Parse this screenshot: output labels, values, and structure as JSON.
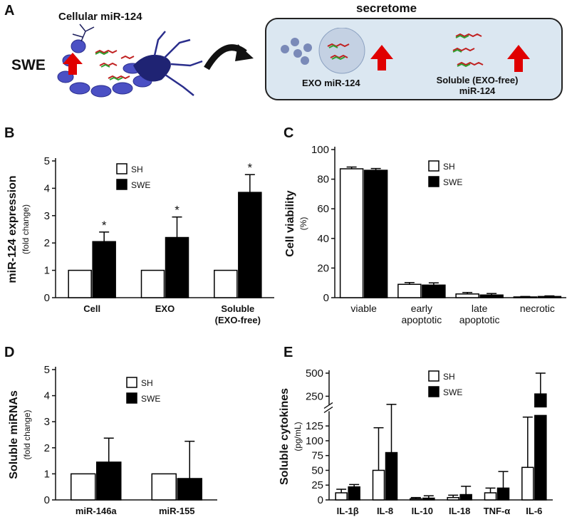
{
  "panel_labels": [
    "A",
    "B",
    "C",
    "D",
    "E"
  ],
  "panel_a": {
    "cell_title": "Cellular miR-124",
    "condition": "SWE",
    "secretome_title": "secretome",
    "exo_label": "EXO miR-124",
    "soluble_label_line1": "Soluble (EXO-free)",
    "soluble_label_line2": "miR-124",
    "colors": {
      "arrow": "#e00000",
      "neuron": "#3a3fb0",
      "box": "#dbe7f1"
    }
  },
  "legend": {
    "sh": "SH",
    "swe": "SWE"
  },
  "chart_data": [
    {
      "panel": "B",
      "type": "bar",
      "ylabel": "miR-124 expression",
      "ylabel_sub": "(fold change)",
      "ylim": [
        0,
        5
      ],
      "yticks": [
        0,
        1,
        2,
        3,
        4,
        5
      ],
      "categories": [
        {
          "line1": "Cell",
          "line2": ""
        },
        {
          "line1": "EXO",
          "line2": ""
        },
        {
          "line1": "Soluble",
          "line2": "(EXO-free)"
        }
      ],
      "series": [
        {
          "name": "SH",
          "values": [
            1,
            1,
            1
          ],
          "errors": [
            0,
            0,
            0
          ]
        },
        {
          "name": "SWE",
          "values": [
            2.05,
            2.2,
            3.85
          ],
          "errors": [
            0.35,
            0.75,
            0.65
          ]
        }
      ],
      "significance": [
        "*",
        "*",
        "*"
      ],
      "legend_position": "top-left"
    },
    {
      "panel": "C",
      "type": "bar",
      "ylabel": "Cell viability",
      "ylabel_sub": "(%)",
      "ylim": [
        0,
        100
      ],
      "yticks": [
        0,
        20,
        40,
        60,
        80,
        100
      ],
      "categories": [
        {
          "line1": "viable",
          "line2": ""
        },
        {
          "line1": "early",
          "line2": "apoptotic"
        },
        {
          "line1": "late",
          "line2": "apoptotic"
        },
        {
          "line1": "necrotic",
          "line2": ""
        }
      ],
      "series": [
        {
          "name": "SH",
          "values": [
            87,
            9,
            2.5,
            0.5
          ],
          "errors": [
            1.2,
            1.2,
            1,
            0.3
          ]
        },
        {
          "name": "SWE",
          "values": [
            86,
            8.5,
            1.8,
            0.8
          ],
          "errors": [
            1.2,
            1.5,
            1,
            0.4
          ]
        }
      ],
      "legend_position": "top-right"
    },
    {
      "panel": "D",
      "type": "bar",
      "ylabel": "Soluble miRNAs",
      "ylabel_sub": "(fold change)",
      "ylim": [
        0,
        5
      ],
      "yticks": [
        0,
        1,
        2,
        3,
        4,
        5
      ],
      "categories": [
        {
          "line1": "miR-146a",
          "line2": ""
        },
        {
          "line1": "miR-155",
          "line2": ""
        }
      ],
      "series": [
        {
          "name": "SH",
          "values": [
            1,
            1
          ],
          "errors": [
            0,
            0
          ]
        },
        {
          "name": "SWE",
          "values": [
            1.45,
            0.82
          ],
          "errors": [
            0.92,
            1.43
          ]
        }
      ],
      "legend_position": "top-right"
    },
    {
      "panel": "E",
      "type": "bar",
      "ylabel": "Soluble cytokines",
      "ylabel_sub": "(pg/mL)",
      "axis_break": true,
      "ylim_lower": [
        0,
        150
      ],
      "yticks_lower": [
        0,
        25,
        50,
        75,
        100,
        125
      ],
      "ylim_upper": [
        150,
        500
      ],
      "yticks_upper": [
        250,
        500
      ],
      "categories": [
        {
          "line1": "IL-1β",
          "line2": ""
        },
        {
          "line1": "IL-8",
          "line2": ""
        },
        {
          "line1": "IL-10",
          "line2": ""
        },
        {
          "line1": "IL-18",
          "line2": ""
        },
        {
          "line1": "TNF-α",
          "line2": ""
        },
        {
          "line1": "IL-6",
          "line2": ""
        }
      ],
      "series": [
        {
          "name": "SH",
          "values": [
            12,
            50,
            2,
            4,
            12,
            55
          ],
          "errors": [
            6,
            72,
            2,
            4,
            8,
            85
          ]
        },
        {
          "name": "SWE",
          "values": [
            22,
            80,
            3,
            9,
            20,
            275
          ],
          "errors": [
            4,
            82,
            4,
            14,
            28,
            265
          ]
        }
      ],
      "legend_position": "top-right"
    }
  ]
}
